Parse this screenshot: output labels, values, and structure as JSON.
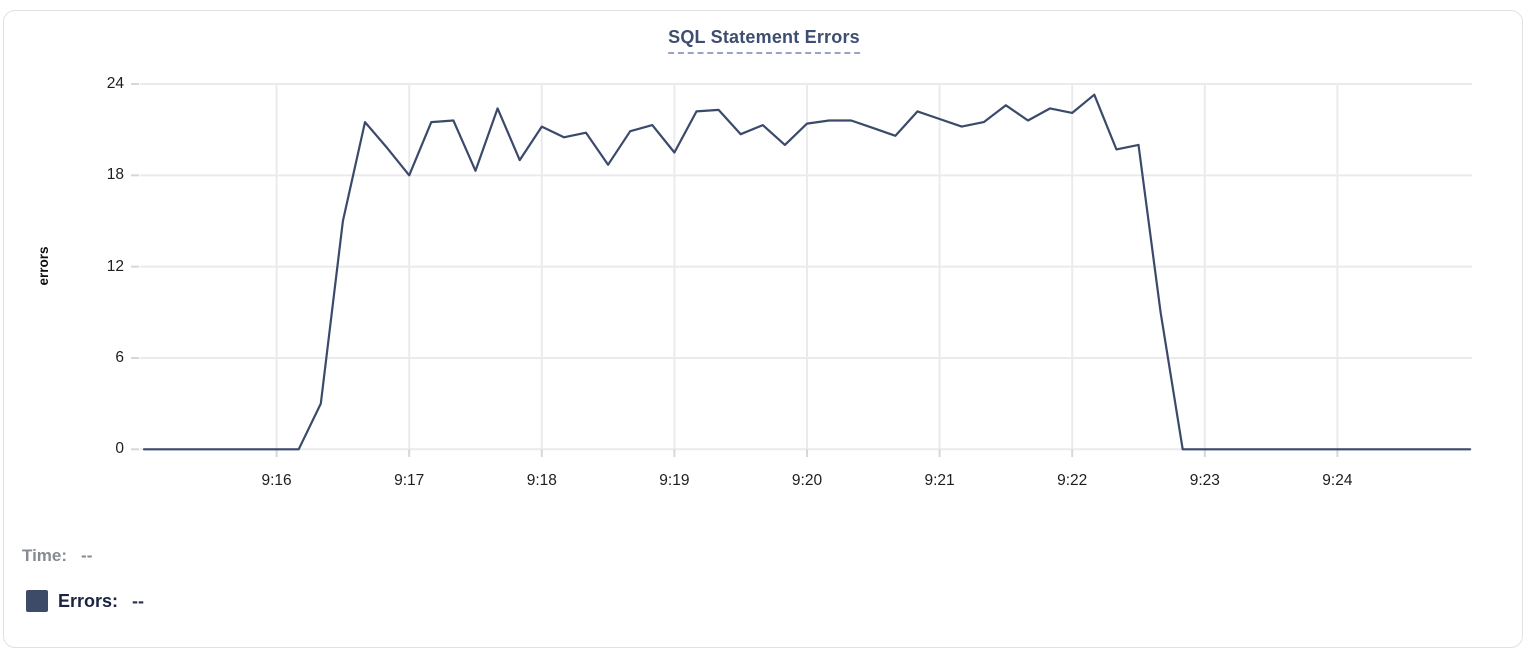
{
  "title": "SQL Statement Errors",
  "chart_data": {
    "type": "line",
    "title": "SQL Statement Errors",
    "xlabel": "",
    "ylabel": "errors",
    "ylim": [
      0,
      24
    ],
    "y_ticks": [
      0,
      6,
      12,
      18,
      24
    ],
    "x_ticks": [
      "9:16",
      "9:17",
      "9:18",
      "9:19",
      "9:20",
      "9:21",
      "9:22",
      "9:23",
      "9:24"
    ],
    "x_range_start": "9:15:00",
    "x_range_end": "9:25:00",
    "sample_interval_seconds": 10,
    "grid": true,
    "legend_position": "bottom-left",
    "series": [
      {
        "name": "Errors",
        "color": "#3b4a6b",
        "start_time": "9:15:00",
        "values": [
          0,
          0,
          0,
          0,
          0,
          0,
          0,
          0,
          3,
          15,
          21.5,
          19.8,
          18,
          21.5,
          21.6,
          18.3,
          22.4,
          19,
          21.2,
          20.5,
          20.8,
          18.7,
          20.9,
          21.3,
          19.5,
          22.2,
          22.3,
          20.7,
          21.3,
          20,
          21.4,
          21.6,
          21.6,
          21.1,
          20.6,
          22.2,
          21.7,
          21.2,
          21.5,
          22.6,
          21.6,
          22.4,
          22.1,
          23.3,
          19.7,
          20,
          9,
          0,
          0,
          0,
          0,
          0,
          0,
          0,
          0,
          0,
          0,
          0,
          0,
          0,
          0
        ]
      }
    ]
  },
  "legend": {
    "time_label": "Time:",
    "time_value": "--",
    "errors_label": "Errors:",
    "errors_value": "--",
    "errors_swatch_color": "#3d4b68"
  },
  "colors": {
    "line": "#3b4a6b",
    "gridline": "#ebebed",
    "tick": "#d7d7d9",
    "title": "#3e4e70",
    "title_underline": "#98a4c2",
    "axis_text": "#1c1e21",
    "card_border": "#e0e1e4"
  }
}
